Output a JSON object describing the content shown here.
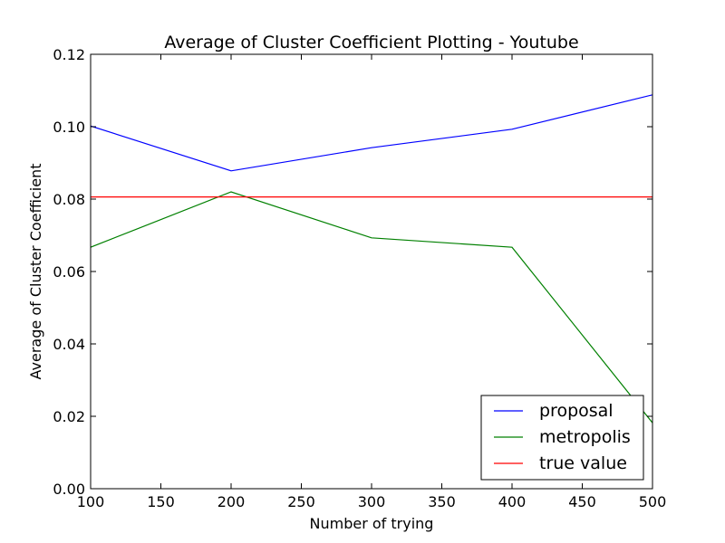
{
  "chart_data": {
    "type": "line",
    "title": "Average of Cluster Coefficient Plotting - Youtube",
    "xlabel": "Number of trying",
    "ylabel": "Average of Cluster Coefficient",
    "xlim": [
      100,
      500
    ],
    "ylim": [
      0.0,
      0.12
    ],
    "x_ticks": [
      "100",
      "150",
      "200",
      "250",
      "300",
      "350",
      "400",
      "450",
      "500"
    ],
    "y_ticks": [
      "0.00",
      "0.02",
      "0.04",
      "0.06",
      "0.08",
      "0.10",
      "0.12"
    ],
    "grid": false,
    "legend_position": "lower-right",
    "series": [
      {
        "name": "proposal",
        "color": "#0000ff",
        "x": [
          100,
          200,
          300,
          400,
          500
        ],
        "y": [
          0.1002,
          0.0878,
          0.0942,
          0.0993,
          0.1088
        ]
      },
      {
        "name": "metropolis",
        "color": "#008000",
        "x": [
          100,
          200,
          300,
          400,
          500
        ],
        "y": [
          0.0667,
          0.082,
          0.0693,
          0.0667,
          0.0182
        ]
      },
      {
        "name": "true value",
        "color": "#ff0000",
        "x": [
          100,
          200,
          300,
          400,
          500
        ],
        "y": [
          0.0806,
          0.0806,
          0.0806,
          0.0806,
          0.0806
        ]
      }
    ]
  }
}
